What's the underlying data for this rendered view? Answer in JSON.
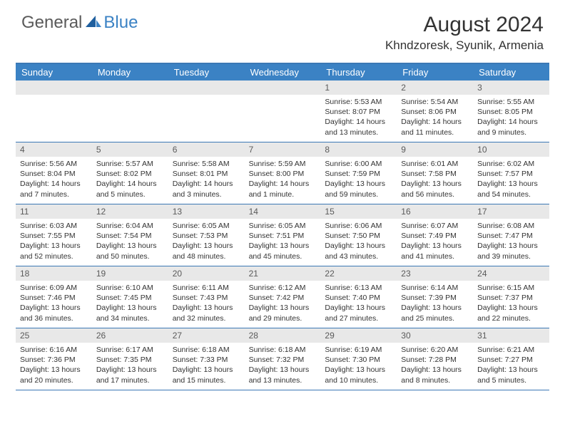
{
  "logo": {
    "general": "General",
    "blue": "Blue"
  },
  "title": "August 2024",
  "location": "Khndzoresk, Syunik, Armenia",
  "colors": {
    "header_bg": "#3b82c4",
    "border": "#3b78b5",
    "daynum_bg": "#e8e8e8",
    "text": "#333333",
    "logo_gray": "#5a5a5a",
    "logo_blue": "#3b82c4",
    "page_bg": "#ffffff"
  },
  "weekdays": [
    "Sunday",
    "Monday",
    "Tuesday",
    "Wednesday",
    "Thursday",
    "Friday",
    "Saturday"
  ],
  "weeks": [
    [
      null,
      null,
      null,
      null,
      {
        "n": "1",
        "sr": "5:53 AM",
        "ss": "8:07 PM",
        "dl": "14 hours and 13 minutes."
      },
      {
        "n": "2",
        "sr": "5:54 AM",
        "ss": "8:06 PM",
        "dl": "14 hours and 11 minutes."
      },
      {
        "n": "3",
        "sr": "5:55 AM",
        "ss": "8:05 PM",
        "dl": "14 hours and 9 minutes."
      }
    ],
    [
      {
        "n": "4",
        "sr": "5:56 AM",
        "ss": "8:04 PM",
        "dl": "14 hours and 7 minutes."
      },
      {
        "n": "5",
        "sr": "5:57 AM",
        "ss": "8:02 PM",
        "dl": "14 hours and 5 minutes."
      },
      {
        "n": "6",
        "sr": "5:58 AM",
        "ss": "8:01 PM",
        "dl": "14 hours and 3 minutes."
      },
      {
        "n": "7",
        "sr": "5:59 AM",
        "ss": "8:00 PM",
        "dl": "14 hours and 1 minute."
      },
      {
        "n": "8",
        "sr": "6:00 AM",
        "ss": "7:59 PM",
        "dl": "13 hours and 59 minutes."
      },
      {
        "n": "9",
        "sr": "6:01 AM",
        "ss": "7:58 PM",
        "dl": "13 hours and 56 minutes."
      },
      {
        "n": "10",
        "sr": "6:02 AM",
        "ss": "7:57 PM",
        "dl": "13 hours and 54 minutes."
      }
    ],
    [
      {
        "n": "11",
        "sr": "6:03 AM",
        "ss": "7:55 PM",
        "dl": "13 hours and 52 minutes."
      },
      {
        "n": "12",
        "sr": "6:04 AM",
        "ss": "7:54 PM",
        "dl": "13 hours and 50 minutes."
      },
      {
        "n": "13",
        "sr": "6:05 AM",
        "ss": "7:53 PM",
        "dl": "13 hours and 48 minutes."
      },
      {
        "n": "14",
        "sr": "6:05 AM",
        "ss": "7:51 PM",
        "dl": "13 hours and 45 minutes."
      },
      {
        "n": "15",
        "sr": "6:06 AM",
        "ss": "7:50 PM",
        "dl": "13 hours and 43 minutes."
      },
      {
        "n": "16",
        "sr": "6:07 AM",
        "ss": "7:49 PM",
        "dl": "13 hours and 41 minutes."
      },
      {
        "n": "17",
        "sr": "6:08 AM",
        "ss": "7:47 PM",
        "dl": "13 hours and 39 minutes."
      }
    ],
    [
      {
        "n": "18",
        "sr": "6:09 AM",
        "ss": "7:46 PM",
        "dl": "13 hours and 36 minutes."
      },
      {
        "n": "19",
        "sr": "6:10 AM",
        "ss": "7:45 PM",
        "dl": "13 hours and 34 minutes."
      },
      {
        "n": "20",
        "sr": "6:11 AM",
        "ss": "7:43 PM",
        "dl": "13 hours and 32 minutes."
      },
      {
        "n": "21",
        "sr": "6:12 AM",
        "ss": "7:42 PM",
        "dl": "13 hours and 29 minutes."
      },
      {
        "n": "22",
        "sr": "6:13 AM",
        "ss": "7:40 PM",
        "dl": "13 hours and 27 minutes."
      },
      {
        "n": "23",
        "sr": "6:14 AM",
        "ss": "7:39 PM",
        "dl": "13 hours and 25 minutes."
      },
      {
        "n": "24",
        "sr": "6:15 AM",
        "ss": "7:37 PM",
        "dl": "13 hours and 22 minutes."
      }
    ],
    [
      {
        "n": "25",
        "sr": "6:16 AM",
        "ss": "7:36 PM",
        "dl": "13 hours and 20 minutes."
      },
      {
        "n": "26",
        "sr": "6:17 AM",
        "ss": "7:35 PM",
        "dl": "13 hours and 17 minutes."
      },
      {
        "n": "27",
        "sr": "6:18 AM",
        "ss": "7:33 PM",
        "dl": "13 hours and 15 minutes."
      },
      {
        "n": "28",
        "sr": "6:18 AM",
        "ss": "7:32 PM",
        "dl": "13 hours and 13 minutes."
      },
      {
        "n": "29",
        "sr": "6:19 AM",
        "ss": "7:30 PM",
        "dl": "13 hours and 10 minutes."
      },
      {
        "n": "30",
        "sr": "6:20 AM",
        "ss": "7:28 PM",
        "dl": "13 hours and 8 minutes."
      },
      {
        "n": "31",
        "sr": "6:21 AM",
        "ss": "7:27 PM",
        "dl": "13 hours and 5 minutes."
      }
    ]
  ],
  "labels": {
    "sunrise": "Sunrise:",
    "sunset": "Sunset:",
    "daylight": "Daylight:"
  }
}
